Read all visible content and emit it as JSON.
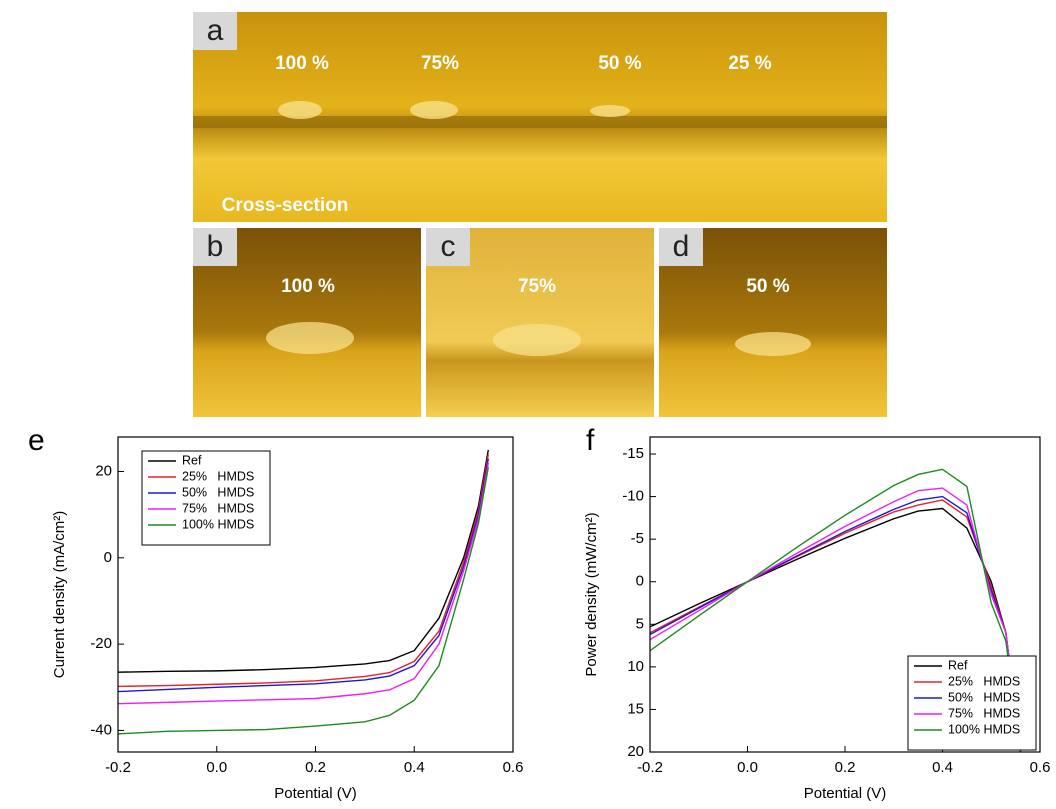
{
  "photos": [
    {
      "label": "a",
      "texts": [
        "100 %",
        "75%",
        "50 %",
        "25 %",
        "Cross-section"
      ]
    },
    {
      "label": "b",
      "texts": [
        "100 %"
      ]
    },
    {
      "label": "c",
      "texts": [
        "75%"
      ]
    },
    {
      "label": "d",
      "texts": [
        "50 %"
      ]
    }
  ],
  "chart_data": [
    {
      "type": "line",
      "panel": "e",
      "xlabel": "Potential (V)",
      "ylabel": "Current density (mA/cm²)",
      "x": [
        -0.2,
        -0.1,
        0,
        0.1,
        0.2,
        0.3,
        0.35,
        0.4,
        0.45,
        0.5,
        0.53,
        0.55
      ],
      "xlim": [
        -0.2,
        0.6
      ],
      "xticks": [
        -0.2,
        {
          "value": 0,
          "label": "0.0"
        },
        0.2,
        0.4,
        0.6
      ],
      "ylim": [
        -45,
        28
      ],
      "yticks": [
        -40,
        -20,
        0,
        20
      ],
      "y_reversed": false,
      "legend": "upper left",
      "series": [
        {
          "name": "Ref",
          "color": "#000000",
          "values": [
            -26.5,
            -26.3,
            -26.2,
            -25.9,
            -25.4,
            -24.6,
            -23.8,
            -21.5,
            -14,
            0,
            12,
            25
          ]
        },
        {
          "name": "25%   HMDS",
          "color": "#e8202a",
          "values": [
            -29.8,
            -29.6,
            -29.3,
            -29,
            -28.5,
            -27.5,
            -26.6,
            -24,
            -17,
            -1,
            11,
            24
          ]
        },
        {
          "name": "50%   HMDS",
          "color": "#1a1ad0",
          "values": [
            -31,
            -30.5,
            -30,
            -29.6,
            -29.2,
            -28.3,
            -27.4,
            -25,
            -18,
            -2,
            10,
            23
          ]
        },
        {
          "name": "75%   HMDS",
          "color": "#f01ef0",
          "values": [
            -33.8,
            -33.5,
            -33.2,
            -32.9,
            -32.6,
            -31.5,
            -30.6,
            -28,
            -20,
            -3,
            9,
            22
          ]
        },
        {
          "name": "100% HMDS",
          "color": "#1e8a1e",
          "values": [
            -40.8,
            -40.2,
            -40,
            -39.8,
            -39,
            -38,
            -36.5,
            -33,
            -25,
            -5,
            8,
            21
          ]
        }
      ]
    },
    {
      "type": "line",
      "panel": "f",
      "xlabel": "Potential (V)",
      "ylabel": "Power density (mW/cm²)",
      "x": [
        -0.2,
        -0.1,
        0,
        0.1,
        0.2,
        0.3,
        0.35,
        0.4,
        0.45,
        0.5,
        0.53,
        0.56
      ],
      "xlim": [
        -0.2,
        0.6
      ],
      "xticks": [
        -0.2,
        {
          "value": 0,
          "label": "0.0"
        },
        0.2,
        0.4,
        0.6
      ],
      "ylim": [
        -17,
        20
      ],
      "yticks": [
        -15,
        -10,
        -5,
        0,
        5,
        10,
        15,
        20
      ],
      "y_reversed": true,
      "legend": "lower right",
      "series": [
        {
          "name": "Ref",
          "color": "#000000",
          "values": [
            5.3,
            2.6,
            0,
            -2.6,
            -5.1,
            -7.4,
            -8.3,
            -8.6,
            -6.3,
            0,
            6,
            20
          ]
        },
        {
          "name": "25%   HMDS",
          "color": "#e8202a",
          "values": [
            6,
            3,
            0,
            -2.9,
            -5.7,
            -8.2,
            -9,
            -9.6,
            -7.6,
            0.5,
            6,
            20
          ]
        },
        {
          "name": "50%   HMDS",
          "color": "#1a1ad0",
          "values": [
            6.2,
            3.1,
            0,
            -3,
            -5.9,
            -8.5,
            -9.6,
            -10,
            -8.1,
            1,
            6,
            20
          ]
        },
        {
          "name": "75%   HMDS",
          "color": "#f01ef0",
          "values": [
            6.8,
            3.4,
            0,
            -3.3,
            -6.5,
            -9.4,
            -10.7,
            -11,
            -9,
            1.5,
            6,
            20
          ]
        },
        {
          "name": "100% HMDS",
          "color": "#1e8a1e",
          "values": [
            8.1,
            4,
            0,
            -4,
            -7.8,
            -11.3,
            -12.6,
            -13.2,
            -11.2,
            2.5,
            7,
            20
          ]
        }
      ]
    }
  ]
}
